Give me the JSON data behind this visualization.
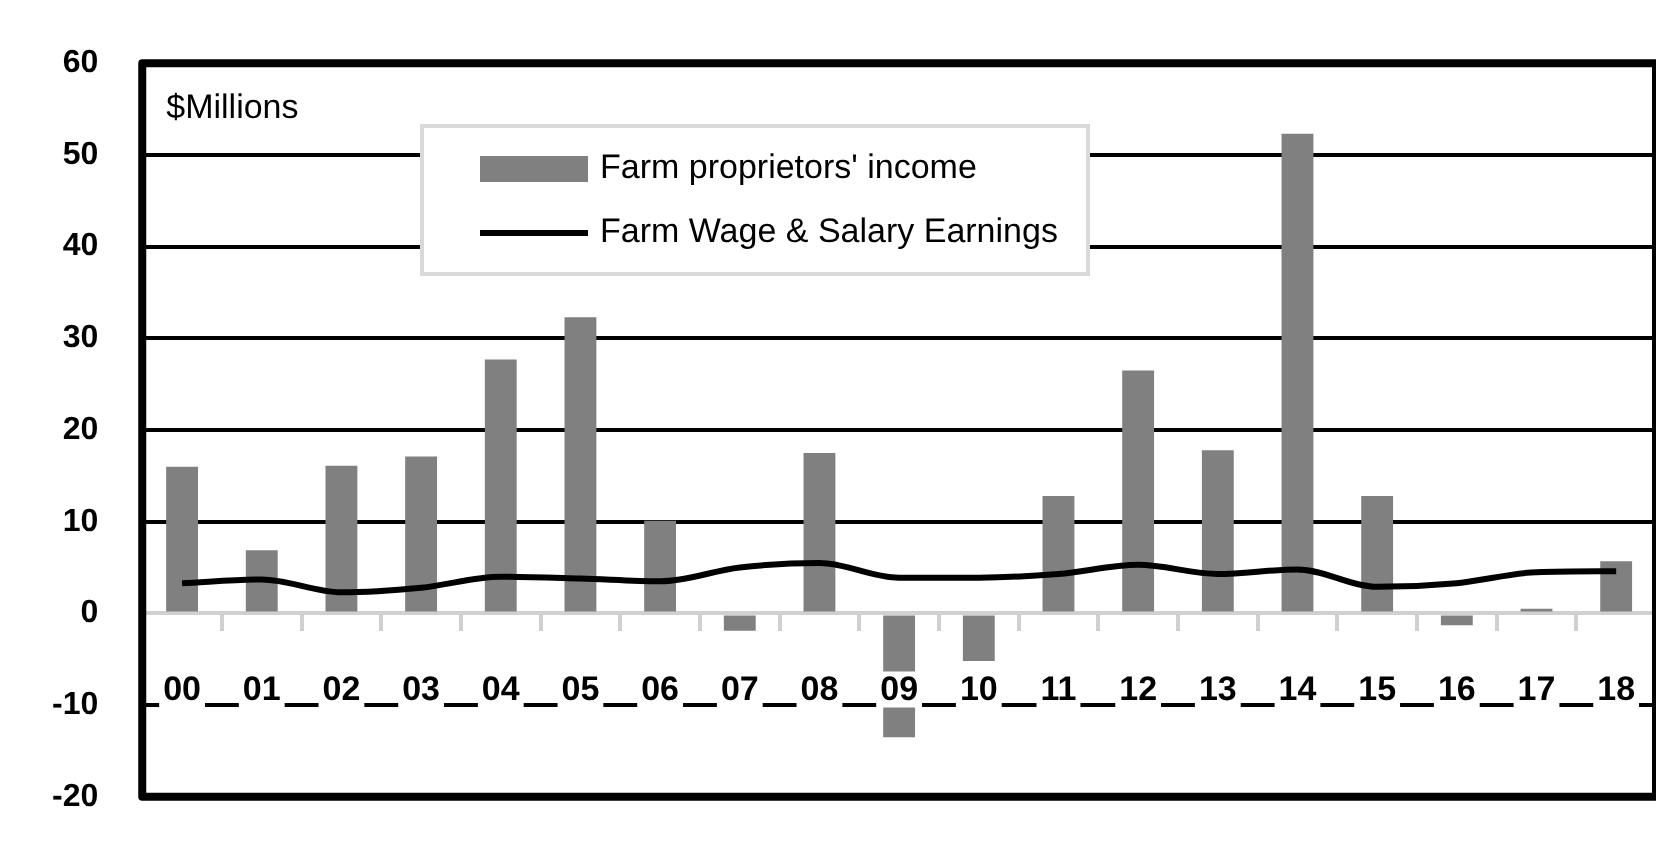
{
  "chart_data": {
    "type": "bar",
    "categories": [
      "00",
      "01",
      "02",
      "03",
      "04",
      "05",
      "06",
      "07",
      "08",
      "09",
      "10",
      "11",
      "12",
      "13",
      "14",
      "15",
      "16",
      "17",
      "18"
    ],
    "series": [
      {
        "name": "Farm proprietors' income",
        "type": "bar",
        "color": "#808080",
        "values": [
          16.0,
          6.9,
          16.1,
          17.1,
          27.7,
          32.3,
          10.1,
          -1.9,
          17.5,
          -13.5,
          -5.2,
          12.8,
          26.5,
          17.8,
          52.3,
          12.8,
          -1.3,
          0.5,
          5.7
        ]
      },
      {
        "name": "Farm Wage & Salary Earnings",
        "type": "line",
        "color": "#000000",
        "values": [
          3.3,
          3.7,
          2.3,
          2.8,
          4.0,
          3.8,
          3.5,
          5.0,
          5.5,
          3.9,
          3.9,
          4.3,
          5.3,
          4.3,
          4.8,
          2.9,
          3.3,
          4.5,
          4.6
        ]
      }
    ],
    "ylim": [
      -20,
      60
    ],
    "yticks": [
      -20,
      -10,
      0,
      10,
      20,
      30,
      40,
      50,
      60
    ],
    "grid": "y",
    "legend": "top",
    "marker": "none",
    "line_style": "solid",
    "annotations": [
      "$Millions"
    ]
  }
}
